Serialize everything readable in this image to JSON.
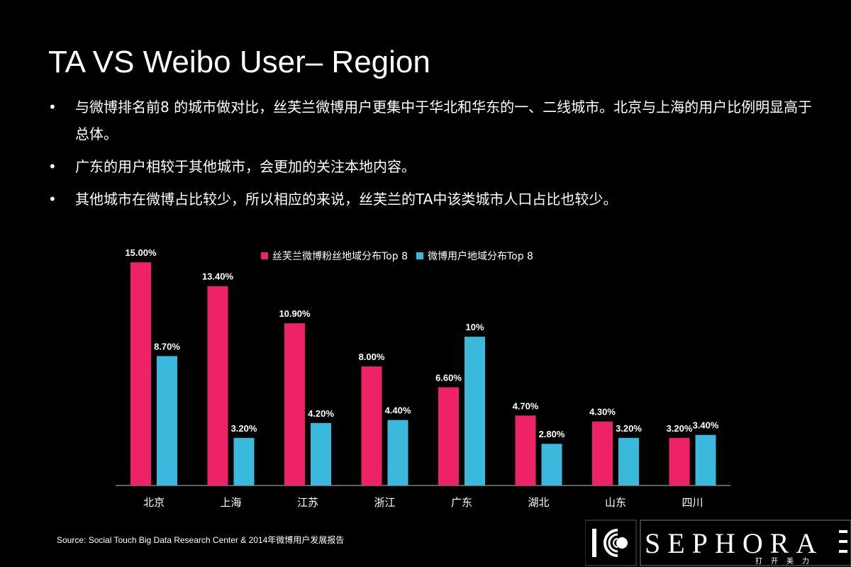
{
  "title": "TA VS Weibo User– Region",
  "bullets": [
    "与微博排名前8 的城市做对比，丝芙兰微博用户更集中于华北和华东的一、二线城市。北京与上海的用户比例明显高于总体。",
    "广东的用户相较于其他城市，会更加的关注本地内容。",
    "其他城市在微博占比较少，所以相应的来说，丝芙兰的TA中该类城市人口占比也较少。"
  ],
  "bullet_marker": "•",
  "source": "Source: Social Touch Big Data Research Center & 2014年微博用户发展报告",
  "logo": {
    "mark_text": "ICC",
    "brand": "SEPHORA",
    "tagline": "打开美力"
  },
  "colors": {
    "background": "#000000",
    "series1": "#ee2266",
    "series2": "#3ab9dc",
    "axis": "#bbbbbb",
    "text": "#ffffff"
  },
  "chart_data": {
    "type": "bar",
    "title": "",
    "xlabel": "",
    "ylabel": "",
    "ylim": [
      0,
      16
    ],
    "grid": false,
    "legend_position": "top",
    "categories": [
      "北京",
      "上海",
      "江苏",
      "浙江",
      "广东",
      "湖北",
      "山东",
      "四川"
    ],
    "series": [
      {
        "name": "丝芙兰微博粉丝地域分布Top 8",
        "color": "#ee2266",
        "values": [
          15.0,
          13.4,
          10.9,
          8.0,
          6.6,
          4.7,
          4.3,
          3.2
        ],
        "labels": [
          "15.00%",
          "13.40%",
          "10.90%",
          "8.00%",
          "6.60%",
          "4.70%",
          "4.30%",
          "3.20%"
        ]
      },
      {
        "name": "微博用户地域分布Top 8",
        "color": "#3ab9dc",
        "values": [
          8.7,
          3.2,
          4.2,
          4.4,
          10.0,
          2.8,
          3.2,
          3.4
        ],
        "labels": [
          "8.70%",
          "3.20%",
          "4.20%",
          "4.40%",
          "10%",
          "2.80%",
          "3.20%",
          "3.40%"
        ]
      }
    ]
  }
}
